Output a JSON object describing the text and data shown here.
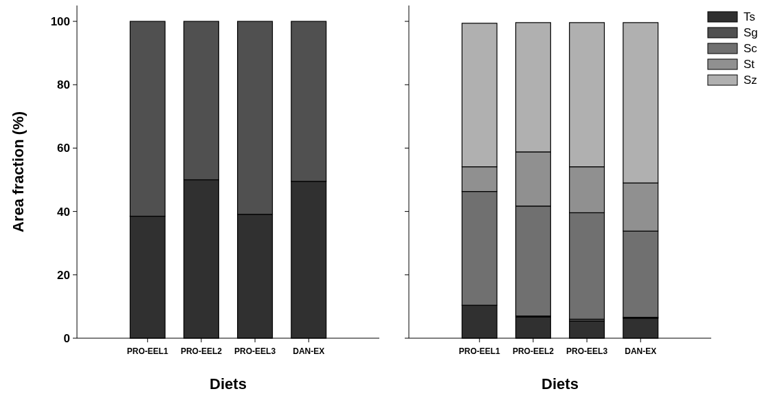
{
  "chart_data": [
    {
      "type": "bar",
      "stacked": true,
      "categories": [
        "PRO-EEL1",
        "PRO-EEL2",
        "PRO-EEL3",
        "DAN-EX"
      ],
      "xlabel": "Diets",
      "ylabel": "Area fraction (%)",
      "ylim": [
        0,
        105
      ],
      "yticks": [
        0,
        20,
        40,
        60,
        80,
        100
      ],
      "grid": false,
      "legend": false,
      "series": [
        {
          "color": "#303030",
          "values": [
            38.5,
            50.0,
            39.1,
            49.5
          ]
        },
        {
          "color": "#505050",
          "values": [
            61.5,
            50.0,
            60.9,
            50.5
          ]
        }
      ]
    },
    {
      "type": "bar",
      "stacked": true,
      "categories": [
        "PRO-EEL1",
        "PRO-EEL2",
        "PRO-EEL3",
        "DAN-EX"
      ],
      "xlabel": "Diets",
      "ylim": [
        0,
        105
      ],
      "yticks": [
        0,
        20,
        40,
        60,
        80,
        100
      ],
      "grid": false,
      "legend": "top right",
      "tick_labels": "x",
      "series": [
        {
          "name": "Ts",
          "color": "#303030",
          "values": [
            10.4,
            6.7,
            5.4,
            6.3
          ]
        },
        {
          "name": "Sg",
          "color": "#505050",
          "values": [
            null,
            0.3,
            0.6,
            0.3
          ]
        },
        {
          "name": "Sc",
          "color": "#707070",
          "values": [
            35.9,
            34.7,
            33.6,
            27.2
          ]
        },
        {
          "name": "St",
          "color": "#909090",
          "values": [
            7.8,
            17.1,
            14.5,
            15.2
          ]
        },
        {
          "name": "Sz",
          "color": "#b0b0b0",
          "values": [
            45.3,
            40.8,
            45.5,
            50.6
          ]
        }
      ]
    }
  ]
}
